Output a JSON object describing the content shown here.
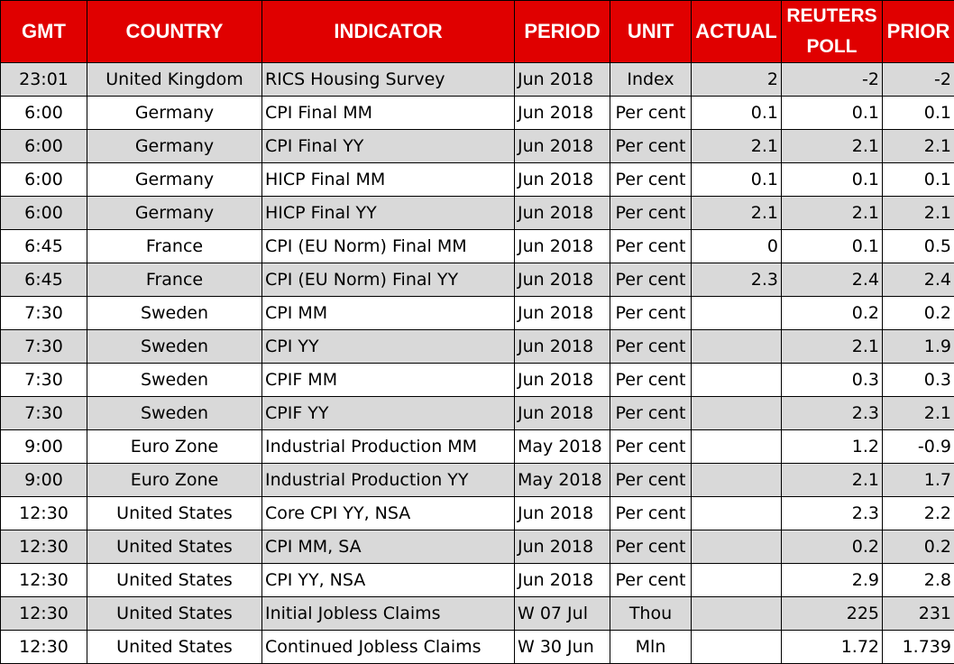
{
  "table": {
    "headers": [
      "GMT",
      "COUNTRY",
      "INDICATOR",
      "PERIOD",
      "UNIT",
      "ACTUAL",
      "REUTERS POLL",
      "PRIOR"
    ],
    "rows": [
      [
        "23:01",
        "United Kingdom",
        "RICS Housing Survey",
        "Jun 2018",
        "Index",
        "2",
        "-2",
        "-2"
      ],
      [
        "6:00",
        "Germany",
        "CPI Final MM",
        "Jun 2018",
        "Per cent",
        "0.1",
        "0.1",
        "0.1"
      ],
      [
        "6:00",
        "Germany",
        "CPI Final YY",
        "Jun 2018",
        "Per cent",
        "2.1",
        "2.1",
        "2.1"
      ],
      [
        "6:00",
        "Germany",
        "HICP Final MM",
        "Jun 2018",
        "Per cent",
        "0.1",
        "0.1",
        "0.1"
      ],
      [
        "6:00",
        "Germany",
        "HICP Final YY",
        "Jun 2018",
        "Per cent",
        "2.1",
        "2.1",
        "2.1"
      ],
      [
        "6:45",
        "France",
        "CPI (EU Norm) Final MM",
        "Jun 2018",
        "Per cent",
        "0",
        "0.1",
        "0.5"
      ],
      [
        "6:45",
        "France",
        "CPI (EU Norm) Final YY",
        "Jun 2018",
        "Per cent",
        "2.3",
        "2.4",
        "2.4"
      ],
      [
        "7:30",
        "Sweden",
        "CPI MM",
        "Jun 2018",
        "Per cent",
        null,
        "0.2",
        "0.2"
      ],
      [
        "7:30",
        "Sweden",
        "CPI YY",
        "Jun 2018",
        "Per cent",
        null,
        "2.1",
        "1.9"
      ],
      [
        "7:30",
        "Sweden",
        "CPIF MM",
        "Jun 2018",
        "Per cent",
        null,
        "0.3",
        "0.3"
      ],
      [
        "7:30",
        "Sweden",
        "CPIF YY",
        "Jun 2018",
        "Per cent",
        null,
        "2.3",
        "2.1"
      ],
      [
        "9:00",
        "Euro Zone",
        "Industrial Production MM",
        "May 2018",
        "Per cent",
        null,
        "1.2",
        "-0.9"
      ],
      [
        "9:00",
        "Euro Zone",
        "Industrial Production YY",
        "May 2018",
        "Per cent",
        null,
        "2.1",
        "1.7"
      ],
      [
        "12:30",
        "United States",
        "Core CPI YY, NSA",
        "Jun 2018",
        "Per cent",
        null,
        "2.3",
        "2.2"
      ],
      [
        "12:30",
        "United States",
        "CPI MM, SA",
        "Jun 2018",
        "Per cent",
        null,
        "0.2",
        "0.2"
      ],
      [
        "12:30",
        "United States",
        "CPI YY, NSA",
        "Jun 2018",
        "Per cent",
        null,
        "2.9",
        "2.8"
      ],
      [
        "12:30",
        "United States",
        "Initial Jobless Claims",
        "W 07 Jul",
        "Thou",
        null,
        "225",
        "231"
      ],
      [
        "12:30",
        "United States",
        "Continued Jobless Claims",
        "W 30 Jun",
        "Mln",
        null,
        "1.72",
        "1.739"
      ]
    ]
  }
}
